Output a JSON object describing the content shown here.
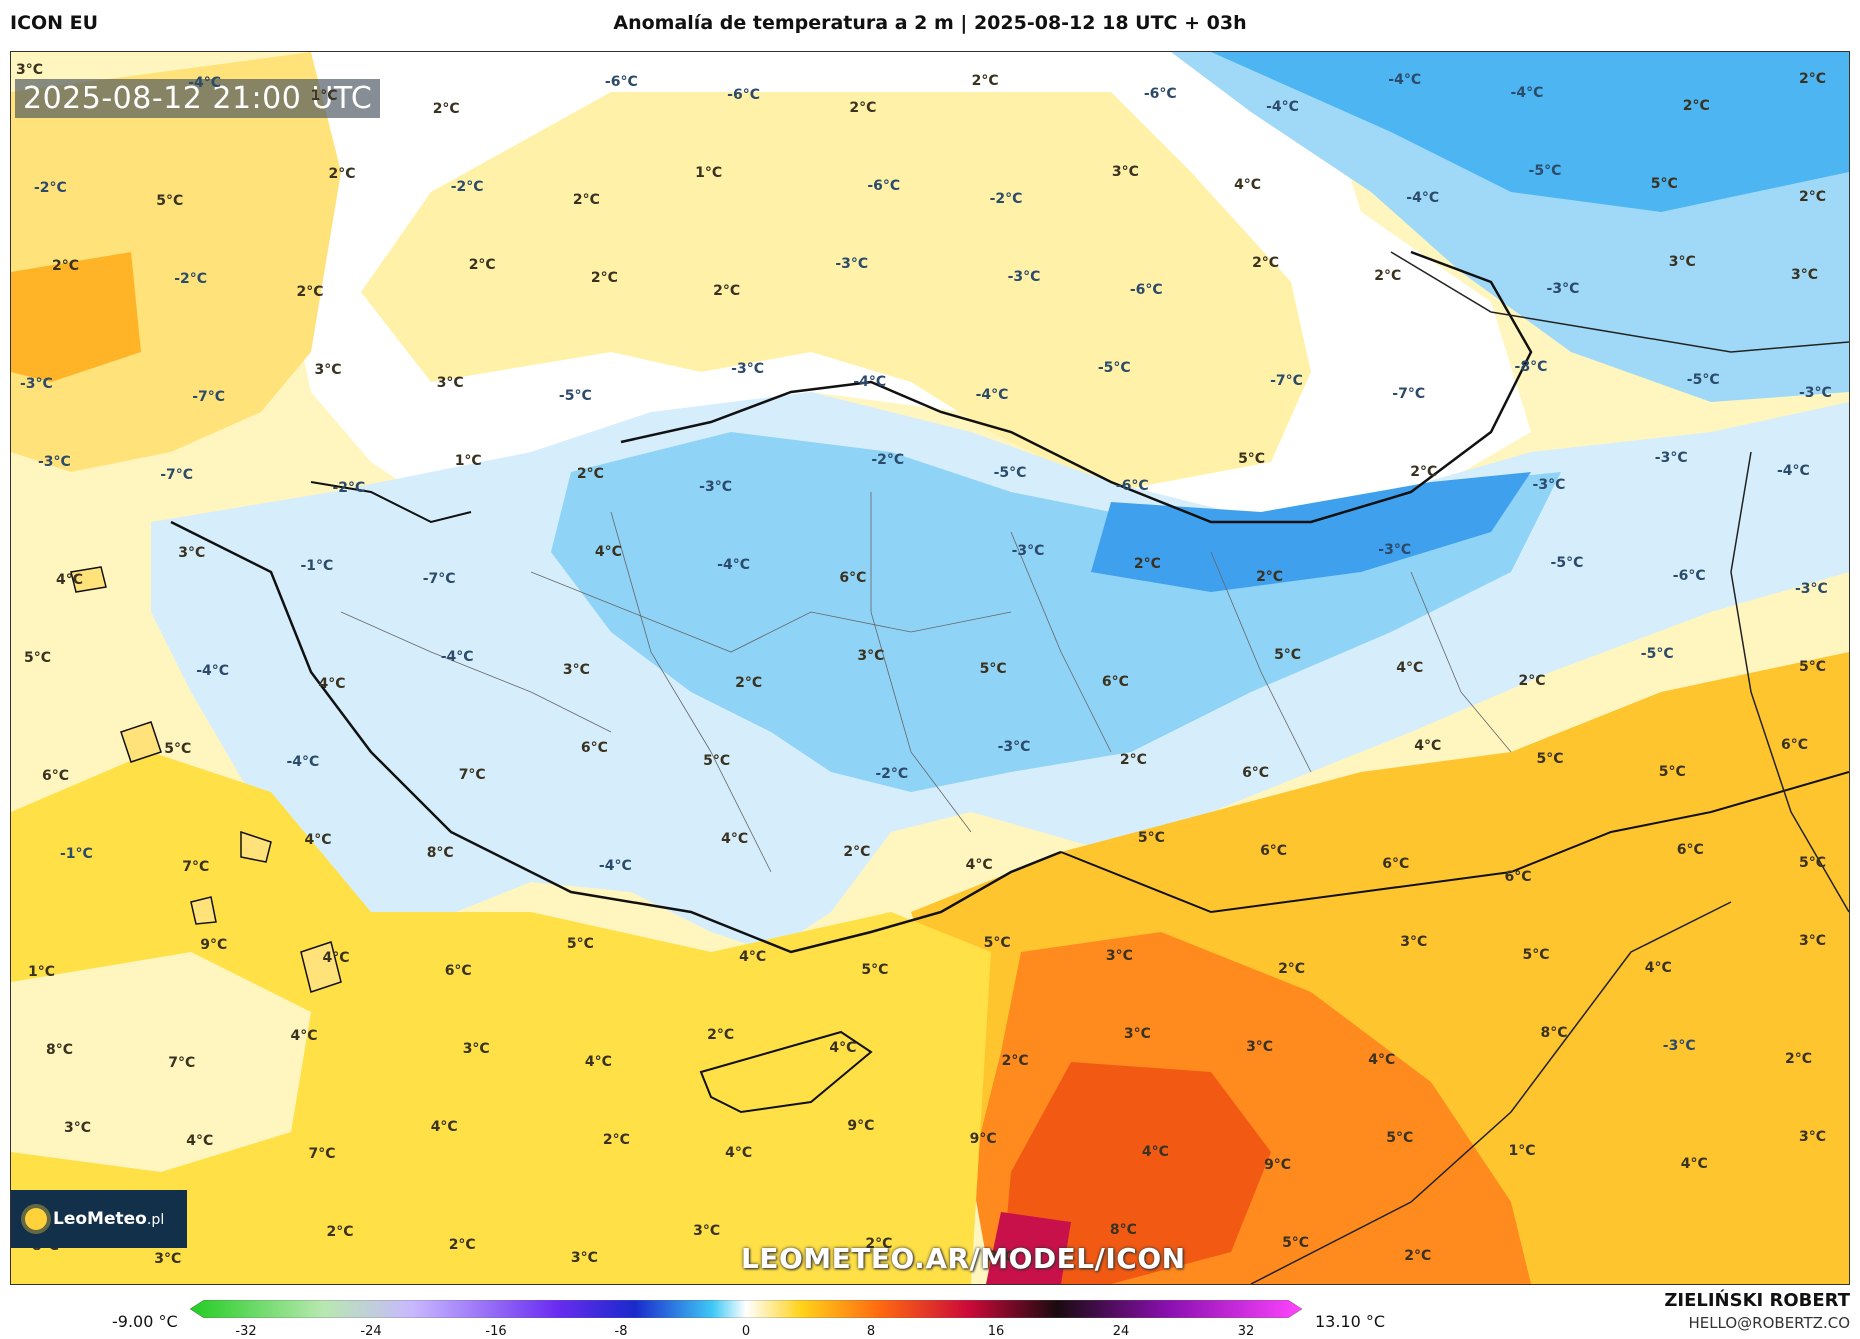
{
  "header": {
    "model": "ICON EU",
    "title": "Anomalía de temperatura a 2 m | 2025-08-12 18 UTC + 03h"
  },
  "map": {
    "timestamp": "2025-08-12 21:00 UTC",
    "website": "LEOMETEO.AR/MODEL/ICON",
    "logo_text": "LeoMeteo",
    "logo_suffix": ".pl",
    "labels": [
      "3°C",
      "-4°C",
      "1°C",
      "2°C",
      "-6°C",
      "-6°C",
      "2°C",
      "2°C",
      "-6°C",
      "-4°C",
      "-4°C",
      "-4°C",
      "2°C",
      "2°C",
      "-2°C",
      "5°C",
      "2°C",
      "-2°C",
      "2°C",
      "1°C",
      "-6°C",
      "-2°C",
      "3°C",
      "4°C",
      "-4°C",
      "-5°C",
      "5°C",
      "2°C",
      "2°C",
      "-2°C",
      "2°C",
      "2°C",
      "2°C",
      "2°C",
      "-3°C",
      "-3°C",
      "-6°C",
      "2°C",
      "2°C",
      "-3°C",
      "3°C",
      "3°C",
      "-3°C",
      "-7°C",
      "3°C",
      "3°C",
      "-5°C",
      "-3°C",
      "-4°C",
      "-4°C",
      "-5°C",
      "-7°C",
      "-7°C",
      "-8°C",
      "-5°C",
      "-3°C",
      "-3°C",
      "-7°C",
      "-2°C",
      "1°C",
      "2°C",
      "-3°C",
      "-2°C",
      "-5°C",
      "-6°C",
      "5°C",
      "2°C",
      "-3°C",
      "-3°C",
      "-4°C",
      "4°C",
      "3°C",
      "-1°C",
      "-7°C",
      "4°C",
      "-4°C",
      "6°C",
      "-3°C",
      "2°C",
      "2°C",
      "-3°C",
      "-5°C",
      "-6°C",
      "-3°C",
      "5°C",
      "-4°C",
      "4°C",
      "-4°C",
      "3°C",
      "2°C",
      "3°C",
      "5°C",
      "6°C",
      "5°C",
      "4°C",
      "2°C",
      "-5°C",
      "5°C",
      "6°C",
      "5°C",
      "-4°C",
      "7°C",
      "6°C",
      "5°C",
      "-2°C",
      "-3°C",
      "2°C",
      "6°C",
      "4°C",
      "5°C",
      "5°C",
      "6°C",
      "-1°C",
      "7°C",
      "4°C",
      "8°C",
      "-4°C",
      "4°C",
      "2°C",
      "4°C",
      "5°C",
      "6°C",
      "6°C",
      "6°C",
      "6°C",
      "5°C",
      "1°C",
      "9°C",
      "4°C",
      "6°C",
      "5°C",
      "4°C",
      "5°C",
      "5°C",
      "3°C",
      "2°C",
      "3°C",
      "5°C",
      "4°C",
      "3°C",
      "8°C",
      "7°C",
      "4°C",
      "3°C",
      "4°C",
      "2°C",
      "4°C",
      "2°C",
      "3°C",
      "3°C",
      "4°C",
      "8°C",
      "-3°C",
      "2°C",
      "3°C",
      "4°C",
      "7°C",
      "4°C",
      "2°C",
      "4°C",
      "9°C",
      "9°C",
      "4°C",
      "9°C",
      "5°C",
      "1°C",
      "4°C",
      "3°C",
      "8°C",
      "3°C",
      "2°C",
      "2°C",
      "3°C",
      "3°C",
      "2°C",
      "8°C",
      "8°C",
      "5°C",
      "2°C"
    ]
  },
  "colorbar": {
    "min_label": "-9.00 °C",
    "max_label": "13.10 °C",
    "ticks": [
      "-32",
      "-24",
      "-16",
      "-8",
      "0",
      "8",
      "16",
      "24",
      "32"
    ]
  },
  "credit": {
    "name": "ZIELIŃSKI ROBERT",
    "email": "HELLO@ROBERTZ.CO"
  }
}
